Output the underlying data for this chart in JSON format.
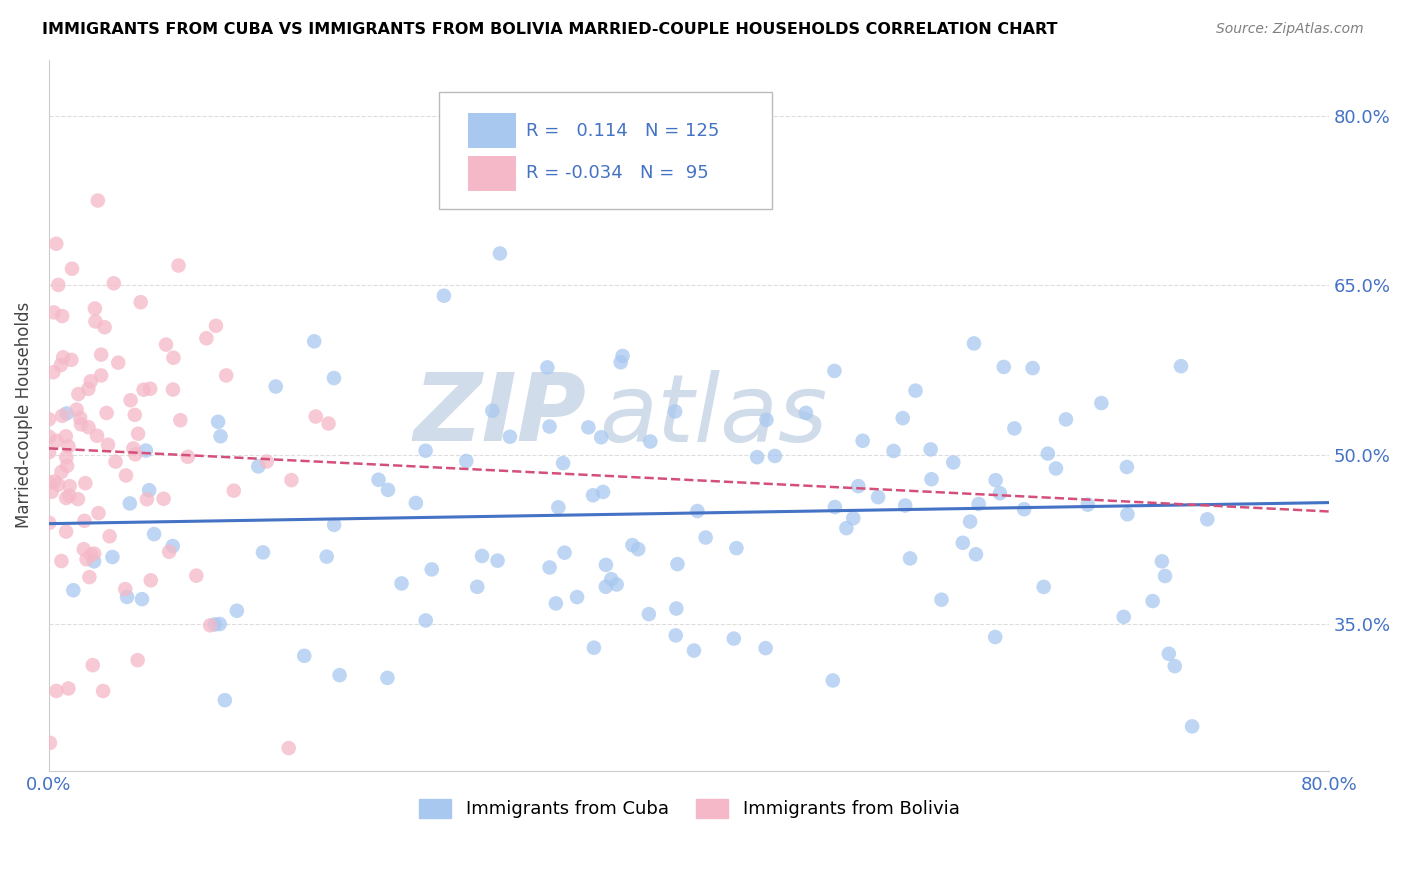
{
  "title": "IMMIGRANTS FROM CUBA VS IMMIGRANTS FROM BOLIVIA MARRIED-COUPLE HOUSEHOLDS CORRELATION CHART",
  "source": "Source: ZipAtlas.com",
  "ylabel": "Married-couple Households",
  "xlim": [
    0.0,
    0.8
  ],
  "ylim": [
    0.22,
    0.85
  ],
  "yticks": [
    0.35,
    0.5,
    0.65,
    0.8
  ],
  "ytick_labels": [
    "35.0%",
    "50.0%",
    "65.0%",
    "80.0%"
  ],
  "cuba_R": 0.114,
  "cuba_N": 125,
  "bolivia_R": -0.034,
  "bolivia_N": 95,
  "cuba_color": "#a8c8f0",
  "bolivia_color": "#f5b8c8",
  "cuba_line_color": "#4472c4",
  "bolivia_line_color": "#d4507a",
  "watermark_color": "#d0dcea",
  "background_color": "#ffffff",
  "grid_color": "#dddddd",
  "title_color": "#000000",
  "source_color": "#808080",
  "legend_text_color": "#4472c4"
}
